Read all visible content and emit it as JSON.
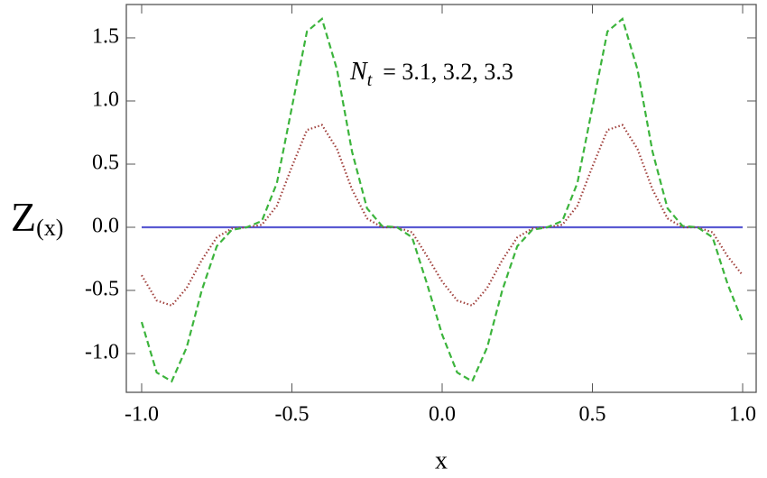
{
  "chart_data": {
    "type": "line",
    "xlabel": "x",
    "ylabel": {
      "symbol": "Z",
      "subscript": "(x)"
    },
    "annotation": {
      "symbol": "N",
      "subscript": "t",
      "text": "=  3.1,  3.2,  3.3"
    },
    "x": [
      -1.0,
      -0.95,
      -0.9,
      -0.85,
      -0.8,
      -0.75,
      -0.7,
      -0.65,
      -0.6,
      -0.55,
      -0.5,
      -0.45,
      -0.4,
      -0.35,
      -0.3,
      -0.25,
      -0.2,
      -0.15,
      -0.1,
      -0.05,
      0.0,
      0.05,
      0.1,
      0.15,
      0.2,
      0.25,
      0.3,
      0.35,
      0.4,
      0.45,
      0.5,
      0.55,
      0.6,
      0.65,
      0.7,
      0.75,
      0.8,
      0.85,
      0.9,
      0.95,
      1.0
    ],
    "series": [
      {
        "color": "#5a5ad2",
        "dash": "solid",
        "values": [
          0,
          0,
          0,
          0,
          0,
          0,
          0,
          0,
          0,
          0,
          0,
          0,
          0,
          0,
          0,
          0,
          0,
          0,
          0,
          0,
          0,
          0,
          0,
          0,
          0,
          0,
          0,
          0,
          0,
          0,
          0,
          0,
          0,
          0,
          0,
          0,
          0,
          0,
          0,
          0,
          0
        ]
      },
      {
        "color": "#a0403c",
        "dash": "dotted",
        "values": [
          -0.38,
          -0.58,
          -0.62,
          -0.48,
          -0.26,
          -0.08,
          -0.01,
          0,
          0.02,
          0.17,
          0.48,
          0.77,
          0.81,
          0.62,
          0.3,
          0.07,
          0,
          0,
          -0.04,
          -0.23,
          -0.43,
          -0.58,
          -0.62,
          -0.48,
          -0.26,
          -0.08,
          -0.01,
          0,
          0.02,
          0.17,
          0.48,
          0.77,
          0.81,
          0.62,
          0.3,
          0.07,
          0,
          0,
          -0.04,
          -0.23,
          -0.38
        ]
      },
      {
        "color": "#3cb43c",
        "dash": "dashed",
        "values": [
          -0.75,
          -1.15,
          -1.22,
          -0.95,
          -0.5,
          -0.15,
          -0.02,
          0,
          0.05,
          0.35,
          0.95,
          1.55,
          1.65,
          1.25,
          0.6,
          0.15,
          0.01,
          0,
          -0.08,
          -0.45,
          -0.85,
          -1.15,
          -1.22,
          -0.95,
          -0.5,
          -0.15,
          -0.02,
          0,
          0.05,
          0.35,
          0.95,
          1.55,
          1.65,
          1.25,
          0.6,
          0.15,
          0.01,
          0,
          -0.08,
          -0.45,
          -0.75
        ]
      }
    ],
    "xlim": [
      -1.051,
      1.045
    ],
    "ylim": [
      -1.307,
      1.764
    ],
    "xticks": [
      {
        "value": -1.0,
        "label": "-1.0"
      },
      {
        "value": -0.5,
        "label": "-0.5"
      },
      {
        "value": 0,
        "label": "0.0"
      },
      {
        "value": 0.5,
        "label": "0.5"
      },
      {
        "value": 1.0,
        "label": "1.0"
      }
    ],
    "yticks": [
      {
        "value": -1.0,
        "label": "-1.0"
      },
      {
        "value": -0.5,
        "label": "-0.5"
      },
      {
        "value": 0,
        "label": "0.0"
      },
      {
        "value": 0.5,
        "label": "0.5"
      },
      {
        "value": 1.0,
        "label": "1.0"
      },
      {
        "value": 1.5,
        "label": "1.5"
      }
    ],
    "grid": false
  }
}
